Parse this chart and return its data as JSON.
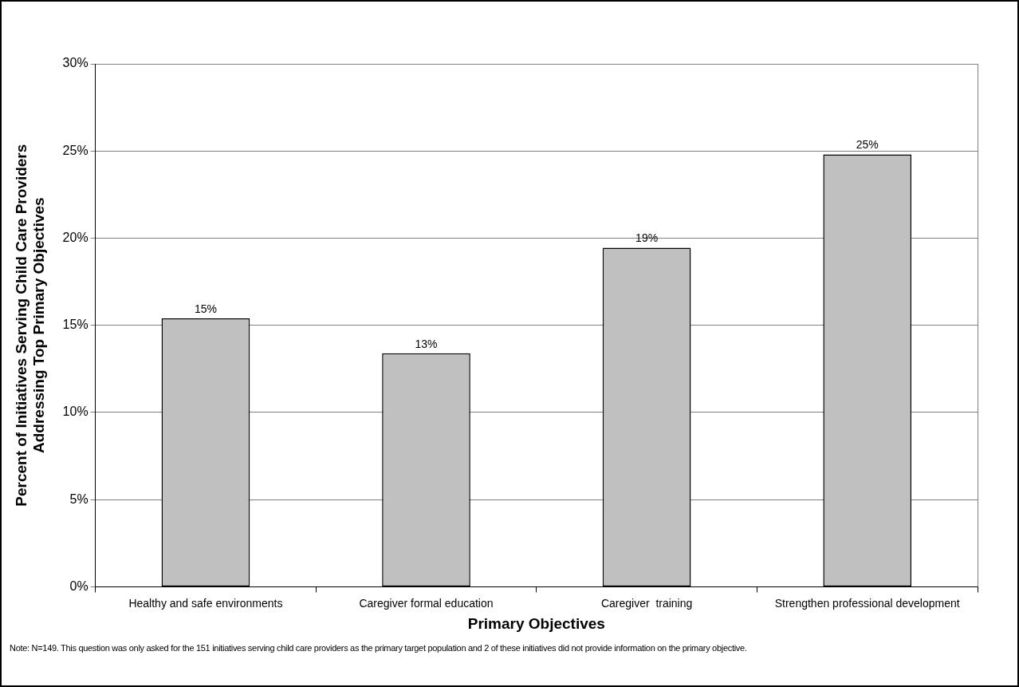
{
  "chart_data": {
    "type": "bar",
    "xlabel": "Primary Objectives",
    "ylabel": "Percent of Initiatives Serving Child Care Providers\nAddressing Top Primary Objectives",
    "categories": [
      "Healthy and safe environments",
      "Caregiver formal education",
      "Caregiver  training",
      "Strengthen professional development"
    ],
    "values": [
      15.4,
      13.4,
      19.45,
      24.8
    ],
    "value_labels": [
      "15%",
      "13%",
      "19%",
      "25%"
    ],
    "color": "#c0c0c0",
    "ylim": [
      0,
      30
    ],
    "yticks": [
      {
        "value": 0,
        "label": "0%"
      },
      {
        "value": 5,
        "label": "5%"
      },
      {
        "value": 10,
        "label": "10%"
      },
      {
        "value": 15,
        "label": "15%"
      },
      {
        "value": 20,
        "label": "20%"
      },
      {
        "value": 25,
        "label": "25%"
      },
      {
        "value": 30,
        "label": "30%"
      }
    ],
    "grid": "y",
    "legend": false,
    "annotations": [
      "Note: N=149. This question was only asked for the 151 initiatives serving child care providers as the primary target population and 2 of these initiatives did not provide information on the primary objective."
    ]
  }
}
